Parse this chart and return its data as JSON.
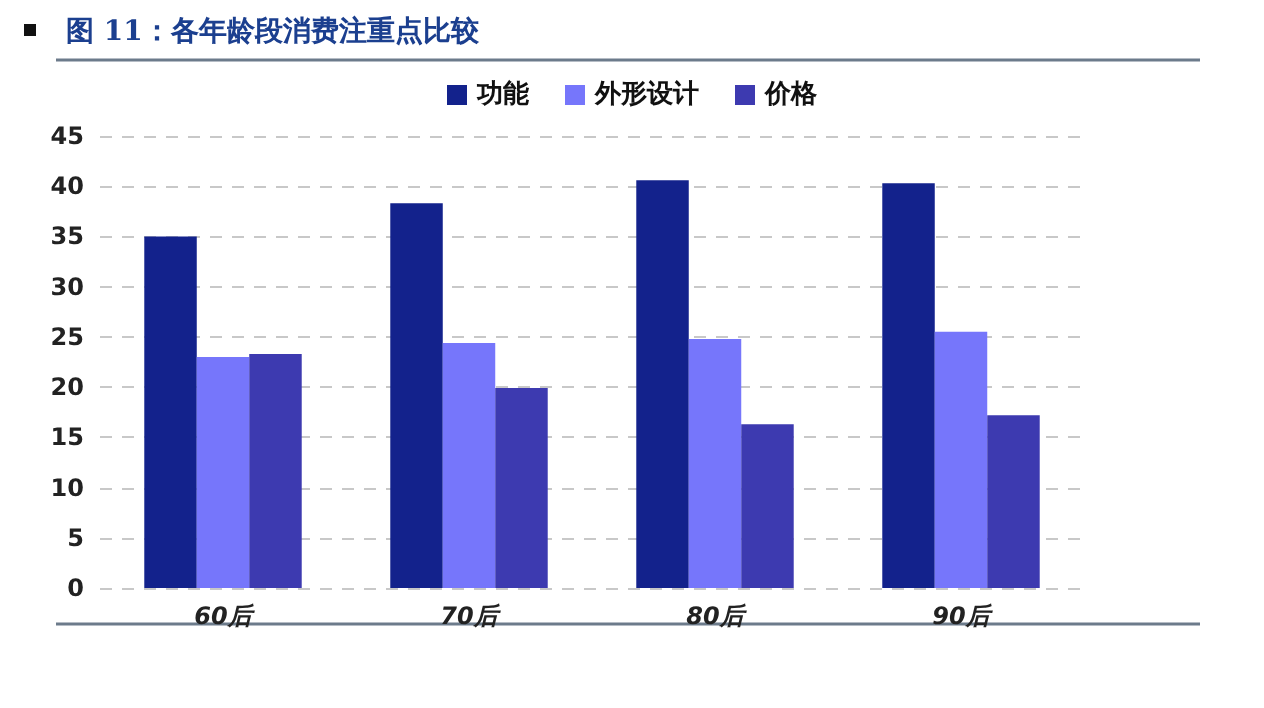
{
  "chart_data": {
    "type": "bar",
    "title": "图 11：各年龄段消费注重点比较",
    "categories": [
      "60后",
      "70后",
      "80后",
      "90后"
    ],
    "series": [
      {
        "name": "功能",
        "color": "#13228c",
        "values": [
          35.0,
          38.3,
          40.6,
          40.3
        ]
      },
      {
        "name": "外形设计",
        "color": "#7676fb",
        "values": [
          23.0,
          24.4,
          24.8,
          25.5
        ]
      },
      {
        "name": "价格",
        "color": "#3d3ab0",
        "values": [
          23.3,
          19.9,
          16.3,
          17.2
        ]
      }
    ],
    "ylim": [
      0,
      45
    ],
    "yticks": [
      0,
      5,
      10,
      15,
      20,
      25,
      30,
      35,
      40,
      45
    ],
    "grid": "y",
    "legend": "top"
  }
}
